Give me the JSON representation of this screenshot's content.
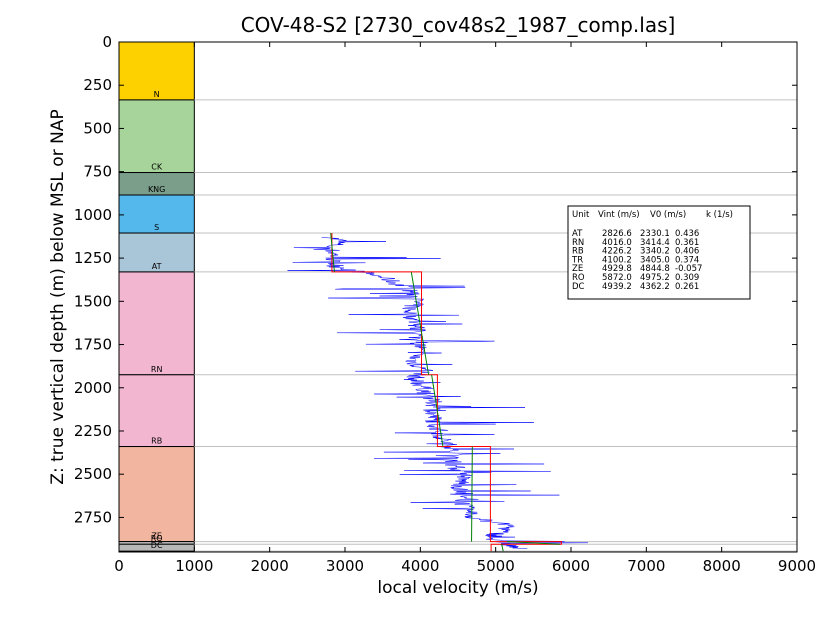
{
  "chart_data": {
    "type": "line",
    "title": "COV-48-S2 [2730_cov48s2_1987_comp.las]",
    "xlabel": "local velocity (m/s)",
    "ylabel": "Z: true vertical depth (m) below MSL or NAP",
    "xlim": [
      0,
      9000
    ],
    "ylim": [
      2950,
      0
    ],
    "x_ticks": [
      "0",
      "1000",
      "2000",
      "3000",
      "4000",
      "5000",
      "6000",
      "7000",
      "8000",
      "9000"
    ],
    "y_ticks": [
      "0",
      "250",
      "500",
      "750",
      "1000",
      "1250",
      "1500",
      "1750",
      "2000",
      "2250",
      "2500",
      "2750"
    ],
    "grid": "horizontal lines at formation boundaries",
    "formation_column": [
      {
        "label": "N",
        "top": 0,
        "base": 335,
        "color": "#fdd100"
      },
      {
        "label": "CK",
        "top": 335,
        "base": 755,
        "color": "#a6d49a"
      },
      {
        "label": "KNG",
        "top": 755,
        "base": 885,
        "color": "#7a9e8a"
      },
      {
        "label": "S",
        "top": 885,
        "base": 1105,
        "color": "#55b8ec"
      },
      {
        "label": "AT",
        "top": 1105,
        "base": 1330,
        "color": "#a8c6d8"
      },
      {
        "label": "RN",
        "top": 1330,
        "base": 1925,
        "color": "#f3b6d1"
      },
      {
        "label": "RB",
        "top": 1925,
        "base": 2340,
        "color": "#f3b6d1"
      },
      {
        "label": "ZE",
        "top": 2340,
        "base": 2890,
        "color": "#f2b6a0"
      },
      {
        "label": "RO",
        "top": 2890,
        "base": 2905,
        "color": "#cccccc"
      },
      {
        "label": "DC",
        "top": 2905,
        "base": 2945,
        "color": "#b8b8b8"
      }
    ],
    "interval_velocity_segments": [
      {
        "unit": "AT",
        "top": 1105,
        "base": 1330,
        "vint": 2826.6
      },
      {
        "unit": "RN",
        "top": 1330,
        "base": 1925,
        "vint": 4016.0
      },
      {
        "unit": "RB",
        "top": 1925,
        "base": 2340,
        "vint": 4226.2
      },
      {
        "unit": "TR",
        "top": 2340,
        "base": 2345,
        "vint": 4100.2
      },
      {
        "unit": "ZE",
        "top": 2340,
        "base": 2890,
        "vint": 4929.8
      },
      {
        "unit": "RO",
        "top": 2890,
        "base": 2905,
        "vint": 5872.0
      },
      {
        "unit": "DC",
        "top": 2905,
        "base": 2945,
        "vint": 4939.2
      }
    ],
    "linear_fit_segments": [
      {
        "unit": "AT",
        "top": 1105,
        "base": 1330,
        "v_top": 2810,
        "v_base": 2860
      },
      {
        "unit": "RN",
        "top": 1330,
        "base": 1925,
        "v_top": 3880,
        "v_base": 4110
      },
      {
        "unit": "RB",
        "top": 1925,
        "base": 2340,
        "v_top": 4150,
        "v_base": 4300
      },
      {
        "unit": "ZE",
        "top": 2340,
        "base": 2890,
        "v_top": 4690,
        "v_base": 4680
      },
      {
        "unit": "RO",
        "top": 2890,
        "base": 2905,
        "v_top": 5150,
        "v_base": 5850
      },
      {
        "unit": "DC",
        "top": 2905,
        "base": 2945,
        "v_top": 5080,
        "v_base": 5100
      }
    ],
    "velocity_log_profile": [
      {
        "z": 1130,
        "v": 2820
      },
      {
        "z": 1150,
        "v": 2950
      },
      {
        "z": 1170,
        "v": 2880
      },
      {
        "z": 1190,
        "v": 2780
      },
      {
        "z": 1210,
        "v": 2830
      },
      {
        "z": 1240,
        "v": 2870
      },
      {
        "z": 1270,
        "v": 2820
      },
      {
        "z": 1300,
        "v": 2900
      },
      {
        "z": 1330,
        "v": 3200
      },
      {
        "z": 1360,
        "v": 3500
      },
      {
        "z": 1400,
        "v": 3700
      },
      {
        "z": 1450,
        "v": 3900
      },
      {
        "z": 1500,
        "v": 3950
      },
      {
        "z": 1550,
        "v": 3850
      },
      {
        "z": 1600,
        "v": 3900
      },
      {
        "z": 1650,
        "v": 3950
      },
      {
        "z": 1700,
        "v": 3950
      },
      {
        "z": 1750,
        "v": 4000
      },
      {
        "z": 1800,
        "v": 3950
      },
      {
        "z": 1850,
        "v": 3900
      },
      {
        "z": 1900,
        "v": 4050
      },
      {
        "z": 1950,
        "v": 3900
      },
      {
        "z": 2000,
        "v": 4050
      },
      {
        "z": 2050,
        "v": 4100
      },
      {
        "z": 2100,
        "v": 4200
      },
      {
        "z": 2150,
        "v": 4150
      },
      {
        "z": 2200,
        "v": 4200
      },
      {
        "z": 2250,
        "v": 4250
      },
      {
        "z": 2300,
        "v": 4300
      },
      {
        "z": 2340,
        "v": 4400
      },
      {
        "z": 2400,
        "v": 4450
      },
      {
        "z": 2450,
        "v": 4450
      },
      {
        "z": 2500,
        "v": 4550
      },
      {
        "z": 2550,
        "v": 4550
      },
      {
        "z": 2600,
        "v": 4500
      },
      {
        "z": 2650,
        "v": 4550
      },
      {
        "z": 2700,
        "v": 4600
      },
      {
        "z": 2750,
        "v": 4700
      },
      {
        "z": 2800,
        "v": 5200
      },
      {
        "z": 2850,
        "v": 5000
      },
      {
        "z": 2880,
        "v": 4950
      },
      {
        "z": 2900,
        "v": 5100
      },
      {
        "z": 2930,
        "v": 5300
      }
    ],
    "legend_table": {
      "header": [
        "Unit",
        "Vint (m/s)",
        "V0 (m/s)",
        "k (1/s)"
      ],
      "rows": [
        [
          "AT",
          "2826.6",
          "2330.1",
          "0.436"
        ],
        [
          "RN",
          "4016.0",
          "3414.4",
          "0.361"
        ],
        [
          "RB",
          "4226.2",
          "3340.2",
          "0.406"
        ],
        [
          "TR",
          "4100.2",
          "3405.0",
          "0.374"
        ],
        [
          "ZE",
          "4929.8",
          "4844.8",
          "-0.057"
        ],
        [
          "RO",
          "5872.0",
          "4975.2",
          "0.309"
        ],
        [
          "DC",
          "4939.2",
          "4362.2",
          "0.261"
        ]
      ],
      "placement": "right"
    },
    "colors": {
      "log": "#0000ff",
      "interval_velocity": "#ff0000",
      "linear_fit": "#008000",
      "boundary_grid": "#c0c0c0"
    }
  }
}
